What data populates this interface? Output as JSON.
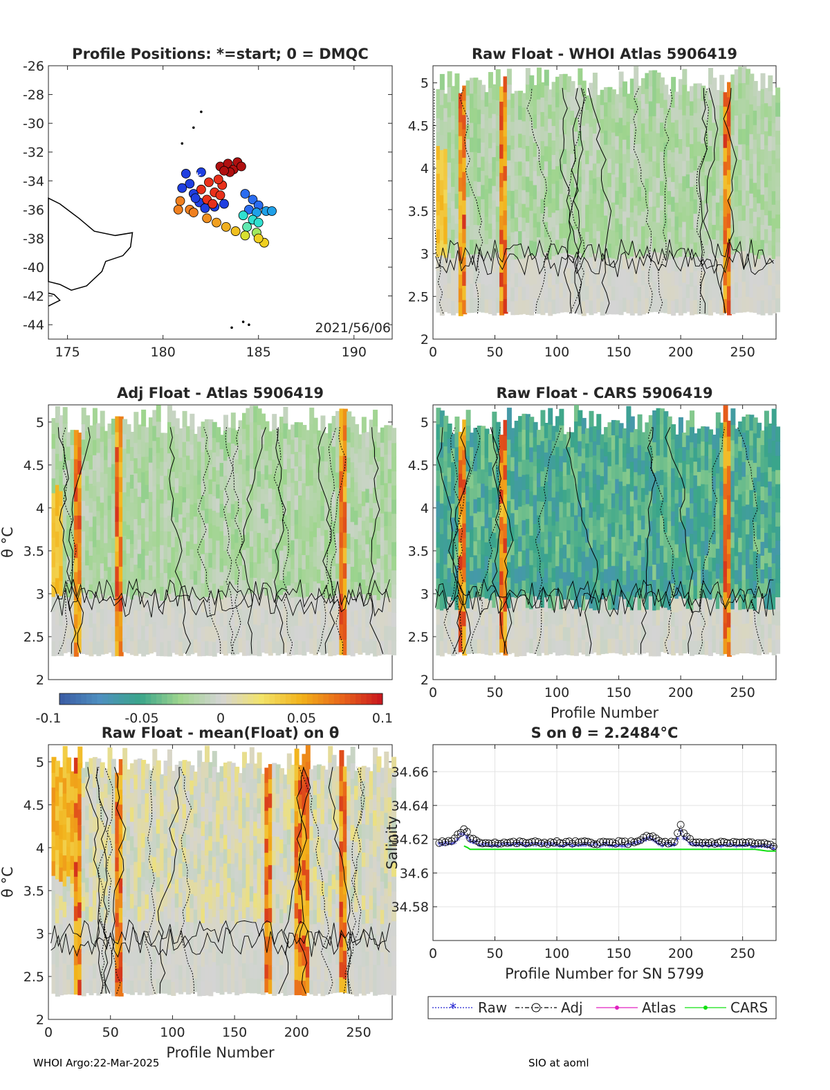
{
  "footer": {
    "left": "WHOI Argo:22-Mar-2025",
    "right": "SIO at aoml"
  },
  "colorbar": {
    "ticks": [
      "-0.1",
      "-0.05",
      "0",
      "0.05",
      "0.1"
    ],
    "range": [
      -0.1,
      0.1
    ],
    "colors": [
      "#3a5aa3",
      "#4e8fc0",
      "#3aa58a",
      "#9fd58e",
      "#d4d4d4",
      "#f2e36a",
      "#f2b21a",
      "#e8641a",
      "#c8141e"
    ]
  },
  "chart_data": [
    {
      "id": "positions",
      "type": "scatter",
      "title": "Profile Positions: *=start; 0 = DMQC",
      "xlim": [
        174,
        192
      ],
      "ylim": [
        -45,
        -26
      ],
      "xticks": [
        "175",
        "180",
        "185",
        "190"
      ],
      "yticks": [
        "-26",
        "-28",
        "-30",
        "-32",
        "-34",
        "-36",
        "-38",
        "-40",
        "-42",
        "-44"
      ],
      "annotation": "2021/56/06",
      "start": [
        181.8,
        -33.9
      ],
      "points": [
        {
          "x": 181.2,
          "y": -33.5,
          "c": "#1f3fe0"
        },
        {
          "x": 181.4,
          "y": -34.2,
          "c": "#1f3fe0"
        },
        {
          "x": 181.6,
          "y": -34.9,
          "c": "#1f3fe0"
        },
        {
          "x": 181.9,
          "y": -35.5,
          "c": "#1f3fe0"
        },
        {
          "x": 182.2,
          "y": -35.9,
          "c": "#1f3fe0"
        },
        {
          "x": 182.7,
          "y": -35.8,
          "c": "#1f3fe0"
        },
        {
          "x": 183.2,
          "y": -35.6,
          "c": "#1f3fe0"
        },
        {
          "x": 181.0,
          "y": -34.5,
          "c": "#1f3fe0"
        },
        {
          "x": 182.0,
          "y": -33.4,
          "c": "#1f3fe0"
        },
        {
          "x": 181.7,
          "y": -35.2,
          "c": "#1f3fe0"
        },
        {
          "x": 182.4,
          "y": -34.1,
          "c": "#e8301a"
        },
        {
          "x": 182.7,
          "y": -34.8,
          "c": "#e8301a"
        },
        {
          "x": 182.3,
          "y": -35.3,
          "c": "#e8301a"
        },
        {
          "x": 183.0,
          "y": -35.0,
          "c": "#e8301a"
        },
        {
          "x": 182.0,
          "y": -34.6,
          "c": "#e8301a"
        },
        {
          "x": 182.6,
          "y": -35.6,
          "c": "#e8301a"
        },
        {
          "x": 183.1,
          "y": -34.3,
          "c": "#e8301a"
        },
        {
          "x": 182.9,
          "y": -33.9,
          "c": "#e8301a"
        },
        {
          "x": 183.0,
          "y": -33.0,
          "c": "#b01010"
        },
        {
          "x": 183.4,
          "y": -32.8,
          "c": "#b01010"
        },
        {
          "x": 183.7,
          "y": -33.2,
          "c": "#b01010"
        },
        {
          "x": 183.9,
          "y": -32.7,
          "c": "#b01010"
        },
        {
          "x": 183.5,
          "y": -33.4,
          "c": "#b01010"
        },
        {
          "x": 184.1,
          "y": -33.0,
          "c": "#b01010"
        },
        {
          "x": 183.2,
          "y": -33.3,
          "c": "#b01010"
        },
        {
          "x": 184.3,
          "y": -34.9,
          "c": "#2a6cf0"
        },
        {
          "x": 184.7,
          "y": -35.3,
          "c": "#2a6cf0"
        },
        {
          "x": 185.0,
          "y": -35.7,
          "c": "#2a6cf0"
        },
        {
          "x": 184.5,
          "y": -36.0,
          "c": "#2a6cf0"
        },
        {
          "x": 184.9,
          "y": -36.2,
          "c": "#1fa0e8"
        },
        {
          "x": 185.4,
          "y": -36.1,
          "c": "#1fa0e8"
        },
        {
          "x": 185.7,
          "y": -36.1,
          "c": "#1fa0e8"
        },
        {
          "x": 184.2,
          "y": -36.4,
          "c": "#30e0d0"
        },
        {
          "x": 184.7,
          "y": -36.7,
          "c": "#30e0d0"
        },
        {
          "x": 185.0,
          "y": -36.9,
          "c": "#30e0d0"
        },
        {
          "x": 184.4,
          "y": -37.2,
          "c": "#60e8b0"
        },
        {
          "x": 184.9,
          "y": -37.6,
          "c": "#a0e860"
        },
        {
          "x": 184.3,
          "y": -37.8,
          "c": "#d8e030"
        },
        {
          "x": 185.3,
          "y": -38.3,
          "c": "#f0d020"
        },
        {
          "x": 185.0,
          "y": -38.0,
          "c": "#f0d020"
        },
        {
          "x": 183.8,
          "y": -37.5,
          "c": "#f0c020"
        },
        {
          "x": 183.3,
          "y": -37.2,
          "c": "#f0b020"
        },
        {
          "x": 182.8,
          "y": -36.9,
          "c": "#f0a020"
        },
        {
          "x": 182.3,
          "y": -36.6,
          "c": "#f09020"
        },
        {
          "x": 181.4,
          "y": -36.0,
          "c": "#f08020"
        },
        {
          "x": 180.8,
          "y": -36.0,
          "c": "#f08020"
        },
        {
          "x": 180.9,
          "y": -35.4,
          "c": "#f08020"
        },
        {
          "x": 181.6,
          "y": -36.2,
          "c": "#f08020"
        }
      ]
    },
    {
      "id": "raw-atlas",
      "type": "heatmap",
      "title": "Raw Float - WHOI Atlas  5906419",
      "xlim": [
        0,
        277
      ],
      "ylim": [
        2,
        5.2
      ],
      "xticks": [
        "0",
        "50",
        "100",
        "150",
        "200",
        "250"
      ],
      "yticks": [
        "2",
        "2.5",
        "3",
        "3.5",
        "4",
        "4.5",
        "5"
      ],
      "xlabel": "",
      "ylabel": "",
      "seed": 3,
      "mode": "green"
    },
    {
      "id": "adj-atlas",
      "type": "heatmap",
      "title": "Adj Float - Atlas  5906419",
      "xlim": [
        0,
        277
      ],
      "ylim": [
        2,
        5.2
      ],
      "xticks": [],
      "yticks": [
        "2",
        "2.5",
        "3",
        "3.5",
        "4",
        "4.5",
        "5"
      ],
      "xlabel": "",
      "ylabel": "θ °C",
      "seed": 7,
      "mode": "green"
    },
    {
      "id": "raw-cars",
      "type": "heatmap",
      "title": "Raw Float - CARS  5906419",
      "xlim": [
        0,
        277
      ],
      "ylim": [
        2,
        5.2
      ],
      "xticks": [
        "0",
        "50",
        "100",
        "150",
        "200",
        "250"
      ],
      "yticks": [
        "2",
        "2.5",
        "3",
        "3.5",
        "4",
        "4.5",
        "5"
      ],
      "xlabel": "Profile Number",
      "ylabel": "",
      "seed": 11,
      "mode": "cars"
    },
    {
      "id": "raw-mean",
      "type": "heatmap",
      "title": "Raw Float - mean(Float) on θ",
      "xlim": [
        0,
        277
      ],
      "ylim": [
        2,
        5.2
      ],
      "xticks": [
        "0",
        "50",
        "100",
        "150",
        "200",
        "250"
      ],
      "yticks": [
        "2",
        "2.5",
        "3",
        "3.5",
        "4",
        "4.5",
        "5"
      ],
      "xlabel": "Profile Number",
      "ylabel": "θ °C",
      "seed": 19,
      "mode": "mean"
    },
    {
      "id": "salinity",
      "type": "line",
      "title": "S on θ = 2.2484°C",
      "xlim": [
        0,
        277
      ],
      "ylim": [
        34.56,
        34.676
      ],
      "xticks": [
        "0",
        "50",
        "100",
        "150",
        "200",
        "250"
      ],
      "yticks": [
        "34.58",
        "34.6",
        "34.62",
        "34.64",
        "34.66"
      ],
      "xlabel": "Profile Number for SN 5799",
      "ylabel": "Salinity",
      "legend": [
        "Raw",
        "Adj",
        "Atlas",
        "CARS"
      ],
      "series": [
        {
          "name": "Raw",
          "color": "#2020d0",
          "x": [
            5,
            15,
            22,
            26,
            30,
            40,
            60,
            80,
            100,
            120,
            140,
            160,
            172,
            176,
            185,
            195,
            200,
            203,
            210,
            230,
            250,
            270,
            277
          ],
          "values": [
            34.616,
            34.617,
            34.621,
            34.623,
            34.618,
            34.616,
            34.616,
            34.616,
            34.616,
            34.616,
            34.616,
            34.616,
            34.619,
            34.62,
            34.616,
            34.616,
            34.624,
            34.62,
            34.616,
            34.616,
            34.616,
            34.615,
            34.614
          ]
        },
        {
          "name": "Adj",
          "color": "#000000",
          "x": [
            5,
            15,
            22,
            26,
            30,
            40,
            60,
            80,
            100,
            120,
            140,
            160,
            172,
            176,
            185,
            195,
            200,
            203,
            210,
            230,
            250,
            270,
            277
          ],
          "values": [
            34.618,
            34.619,
            34.624,
            34.626,
            34.62,
            34.618,
            34.618,
            34.618,
            34.618,
            34.618,
            34.618,
            34.618,
            34.621,
            34.622,
            34.618,
            34.618,
            34.628,
            34.622,
            34.618,
            34.618,
            34.618,
            34.617,
            34.616
          ]
        },
        {
          "name": "CARS",
          "color": "#10e010",
          "x": [
            25,
            28,
            30,
            55,
            57,
            240,
            250,
            260,
            270,
            277
          ],
          "values": [
            34.616,
            34.615,
            34.614,
            34.614,
            34.614,
            34.614,
            34.614,
            34.614,
            34.613,
            34.613
          ]
        }
      ]
    }
  ]
}
